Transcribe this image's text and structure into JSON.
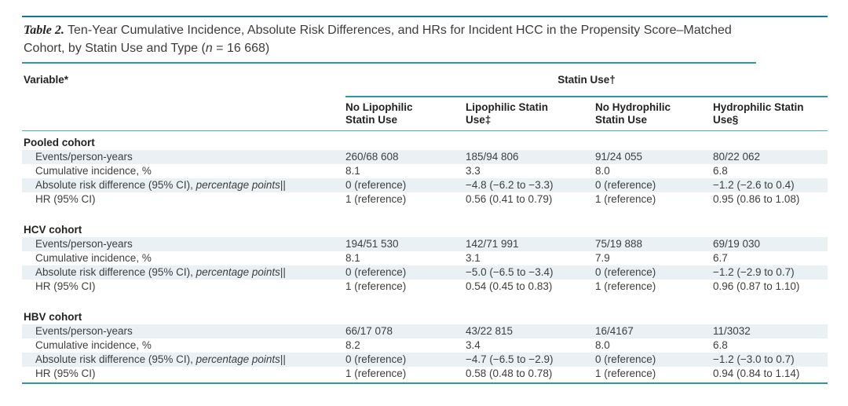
{
  "colors": {
    "teal_dark": "#11798a",
    "teal": "#2b99a1",
    "stripe": "#e9f1f4"
  },
  "title": {
    "label": "Table 2.",
    "text": " Ten-Year Cumulative Incidence, Absolute Risk Differences, and HRs for Incident HCC in the Propensity Score–Matched Cohort, by Statin Use and Type (",
    "n_var": "n",
    "n_value": " = 16 668)"
  },
  "header": {
    "variable_label": "Variable*",
    "group_label": "Statin Use†",
    "columns": [
      {
        "line1": "No Lipophilic",
        "line2": "Statin Use"
      },
      {
        "line1": "Lipophilic Statin",
        "line2": "Use‡"
      },
      {
        "line1": "No Hydrophilic",
        "line2": "Statin Use"
      },
      {
        "line1": "Hydrophilic Statin",
        "line2": "Use§"
      }
    ]
  },
  "sections": [
    {
      "name": "Pooled cohort",
      "rows": [
        {
          "label": "Events/person-years",
          "values": [
            "260/68 608",
            "185/94 806",
            "91/24 055",
            "80/22 062"
          ]
        },
        {
          "label": "Cumulative incidence, %",
          "values": [
            "8.1",
            "3.3",
            "8.0",
            "6.8"
          ]
        },
        {
          "label": "Absolute risk difference (95% CI), ",
          "label_italic": "percentage points",
          "label_suffix": "||",
          "values": [
            "0 (reference)",
            "−4.8 (−6.2 to −3.3)",
            "0 (reference)",
            "−1.2 (−2.6 to 0.4)"
          ]
        },
        {
          "label": "HR (95% CI)",
          "values": [
            "1 (reference)",
            "0.56 (0.41 to 0.79)",
            "1 (reference)",
            "0.95 (0.86 to 1.08)"
          ]
        }
      ]
    },
    {
      "name": "HCV cohort",
      "rows": [
        {
          "label": "Events/person-years",
          "values": [
            "194/51 530",
            "142/71 991",
            "75/19 888",
            "69/19 030"
          ]
        },
        {
          "label": "Cumulative incidence, %",
          "values": [
            "8.1",
            "3.1",
            "7.9",
            "6.7"
          ]
        },
        {
          "label": "Absolute risk difference (95% CI), ",
          "label_italic": "percentage points",
          "label_suffix": "||",
          "values": [
            "0 (reference)",
            "−5.0 (−6.5 to −3.4)",
            "0 (reference)",
            "−1.2 (−2.9 to 0.7)"
          ]
        },
        {
          "label": "HR (95% CI)",
          "values": [
            "1 (reference)",
            "0.54 (0.45 to 0.83)",
            "1 (reference)",
            "0.96 (0.87 to 1.10)"
          ]
        }
      ]
    },
    {
      "name": "HBV cohort",
      "rows": [
        {
          "label": "Events/person-years",
          "values": [
            "66/17 078",
            "43/22 815",
            "16/4167",
            "11/3032"
          ]
        },
        {
          "label": "Cumulative incidence, %",
          "values": [
            "8.2",
            "3.4",
            "8.0",
            "6.8"
          ]
        },
        {
          "label": "Absolute risk difference (95% CI), ",
          "label_italic": "percentage points",
          "label_suffix": "||",
          "values": [
            "0 (reference)",
            "−4.7 (−6.5 to −2.9)",
            "0 (reference)",
            "−1.2 (−3.0 to 0.7)"
          ]
        },
        {
          "label": "HR (95% CI)",
          "values": [
            "1 (reference)",
            "0.58 (0.48 to 0.78)",
            "1 (reference)",
            "0.94 (0.84 to 1.14)"
          ]
        }
      ]
    }
  ]
}
